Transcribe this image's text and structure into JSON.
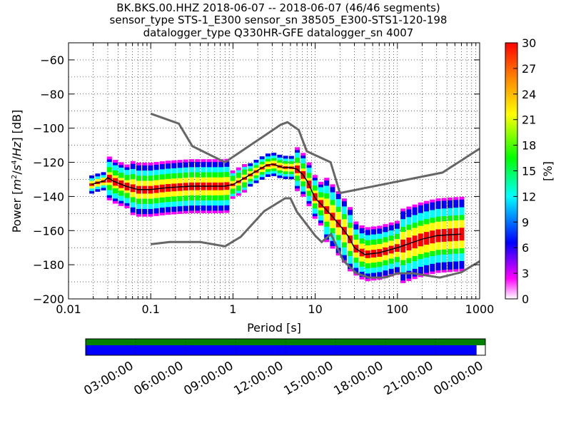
{
  "title_lines": [
    "BK.BKS.00.HHZ   2018-06-07 -- 2018-06-07  (46/46 segments)",
    "sensor_type STS-1_E300 sensor_sn 38505_E300-STS1-120-198",
    "datalogger_type Q330HR-GFE datalogger_sn 4007"
  ],
  "chart_data": {
    "type": "heatmap",
    "xlabel": "Period [s]",
    "ylabel_parts": [
      "Power [",
      "m",
      "2",
      "/",
      "s",
      "4",
      "/",
      "Hz",
      "] [dB]"
    ],
    "xscale": "log",
    "xlim": [
      0.01,
      1000
    ],
    "ylim": [
      -200,
      -50
    ],
    "xticks": [
      {
        "value": 0.01,
        "label": "0.01"
      },
      {
        "value": 0.1,
        "label": "0.1"
      },
      {
        "value": 1,
        "label": "1"
      },
      {
        "value": 10,
        "label": "10"
      },
      {
        "value": 100,
        "label": "100"
      },
      {
        "value": 1000,
        "label": "1000"
      }
    ],
    "yticks": [
      {
        "value": -60,
        "label": "−60"
      },
      {
        "value": -80,
        "label": "−80"
      },
      {
        "value": -100,
        "label": "−100"
      },
      {
        "value": -120,
        "label": "−120"
      },
      {
        "value": -140,
        "label": "−140"
      },
      {
        "value": -160,
        "label": "−160"
      },
      {
        "value": -180,
        "label": "−180"
      },
      {
        "value": -200,
        "label": "−200"
      }
    ],
    "grid": true,
    "colorbar": {
      "label": "[%]",
      "min": 0,
      "max": 30,
      "ticks": [
        "0",
        "3",
        "6",
        "9",
        "12",
        "15",
        "18",
        "21",
        "24",
        "27",
        "30"
      ]
    },
    "noise_models": {
      "color": "#666666",
      "high": [
        [
          0.1,
          -91.5
        ],
        [
          0.22,
          -97.4
        ],
        [
          0.32,
          -110.5
        ],
        [
          0.8,
          -120
        ],
        [
          3.8,
          -98
        ],
        [
          4.6,
          -96.5
        ],
        [
          6.3,
          -101
        ],
        [
          7.9,
          -113.5
        ],
        [
          15.4,
          -120
        ],
        [
          20,
          -138
        ],
        [
          354,
          -126
        ],
        [
          1000,
          -112
        ]
      ],
      "low": [
        [
          0.1,
          -168
        ],
        [
          0.17,
          -166.7
        ],
        [
          0.4,
          -166.7
        ],
        [
          0.8,
          -169.2
        ],
        [
          1.24,
          -163.7
        ],
        [
          2.4,
          -148.6
        ],
        [
          4.3,
          -141.1
        ],
        [
          5,
          -141.1
        ],
        [
          6,
          -149
        ],
        [
          10,
          -163
        ],
        [
          12,
          -166.7
        ],
        [
          15.6,
          -162
        ],
        [
          21.9,
          -177.5
        ],
        [
          31.6,
          -185
        ],
        [
          45,
          -187.5
        ],
        [
          70,
          -187.5
        ],
        [
          101,
          -185
        ],
        [
          154,
          -185
        ],
        [
          328,
          -187.5
        ],
        [
          600,
          -184.4
        ],
        [
          1000,
          -178
        ]
      ]
    },
    "mean_curve": {
      "color": "#000000",
      "points": [
        [
          0.019,
          -133
        ],
        [
          0.022,
          -132
        ],
        [
          0.027,
          -131
        ],
        [
          0.03,
          -129
        ],
        [
          0.035,
          -131
        ],
        [
          0.05,
          -134
        ],
        [
          0.07,
          -136
        ],
        [
          0.1,
          -136
        ],
        [
          0.15,
          -135
        ],
        [
          0.3,
          -134
        ],
        [
          0.5,
          -134
        ],
        [
          0.8,
          -134
        ],
        [
          1,
          -133
        ],
        [
          1.3,
          -130
        ],
        [
          1.8,
          -126
        ],
        [
          2.5,
          -122
        ],
        [
          3,
          -121
        ],
        [
          4,
          -123
        ],
        [
          5,
          -123
        ],
        [
          6,
          -124
        ],
        [
          7,
          -127
        ],
        [
          8,
          -131
        ],
        [
          10,
          -141
        ],
        [
          12,
          -145
        ],
        [
          15,
          -150
        ],
        [
          20,
          -157
        ],
        [
          25,
          -163
        ],
        [
          30,
          -170
        ],
        [
          40,
          -174
        ],
        [
          60,
          -173
        ],
        [
          100,
          -170
        ],
        [
          200,
          -165
        ],
        [
          300,
          -163
        ],
        [
          600,
          -162
        ]
      ]
    },
    "time_bar": {
      "colors": {
        "top": "#008000",
        "bottom": "#0000ff"
      },
      "bottom_fill_fraction": 0.978,
      "ticks": [
        "03:00:00",
        "06:00:00",
        "09:00:00",
        "12:00:00",
        "15:00:00",
        "18:00:00",
        "21:00:00",
        "00:00:00"
      ]
    }
  }
}
